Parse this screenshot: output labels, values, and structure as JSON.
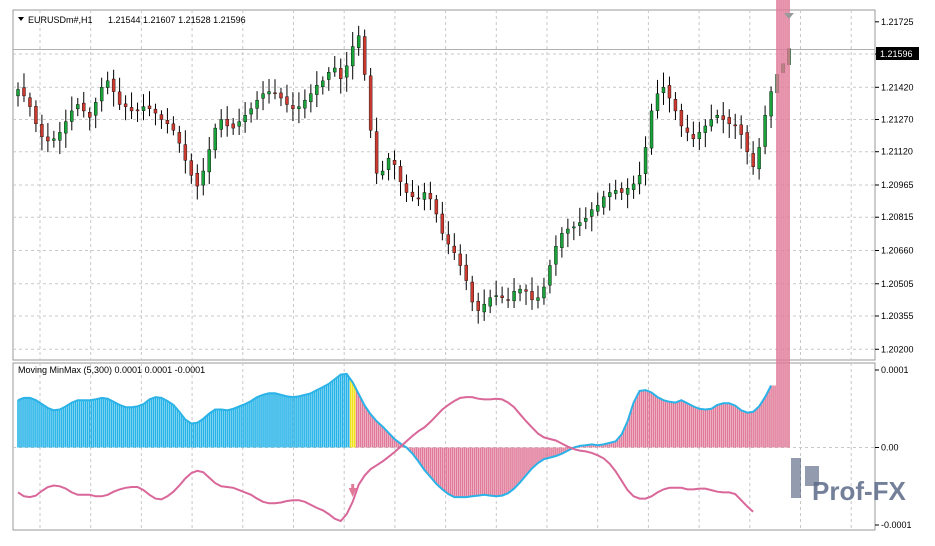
{
  "main_chart": {
    "symbol_label": "EURUSDm#,H1",
    "ohlc_readout": "1.21544 1.21607 1.21528 1.21596",
    "current_price_label": "1.21596",
    "price_ticks": [
      "1.21725",
      "1.21575",
      "1.21420",
      "1.21270",
      "1.21120",
      "1.20965",
      "1.20815",
      "1.20660",
      "1.20505",
      "1.20355",
      "1.20200"
    ]
  },
  "indicator": {
    "title": "Moving MinMax (5,300) 0.0001 0.0001 -0.0001",
    "ticks": [
      "0.0001",
      "0.00",
      "-0.0001"
    ],
    "signal_marker": "arrow-down"
  },
  "watermark": {
    "text": "Prof-FX"
  },
  "colors": {
    "bull_candle": "#1aa33a",
    "bear_candle": "#cc3a30",
    "histogram_positive": "#25b3e8",
    "histogram_negative": "#e07a98",
    "histogram_signal": "#f2e21b",
    "line_blue": "#2bb3e8",
    "line_pink": "#d9679a",
    "grid": "#c8c8c8"
  },
  "chart_data": [
    {
      "type": "candlestick",
      "title": "EURUSDm#,H1",
      "ylim": [
        1.2015,
        1.2178
      ],
      "current_price": 1.21596,
      "close": [
        1.2141,
        1.2138,
        1.2133,
        1.2125,
        1.2119,
        1.2117,
        1.2118,
        1.2121,
        1.2126,
        1.2131,
        1.2134,
        1.2131,
        1.2128,
        1.2135,
        1.2142,
        1.2145,
        1.214,
        1.2134,
        1.2133,
        1.2131,
        1.2131,
        1.2133,
        1.2132,
        1.213,
        1.2127,
        1.2125,
        1.2122,
        1.2116,
        1.2108,
        1.2101,
        1.2096,
        1.2103,
        1.2113,
        1.2123,
        1.2127,
        1.2124,
        1.2123,
        1.2126,
        1.2129,
        1.2132,
        1.2136,
        1.2139,
        1.214,
        1.2139,
        1.2137,
        1.2134,
        1.2132,
        1.2133,
        1.2136,
        1.2139,
        1.2143,
        1.2145,
        1.2149,
        1.2151,
        1.2146,
        1.2152,
        1.2161,
        1.2166,
        1.2148,
        1.2122,
        1.2102,
        1.2103,
        1.2109,
        1.2106,
        1.2098,
        1.2093,
        1.2091,
        1.209,
        1.2093,
        1.209,
        1.2083,
        1.2074,
        1.2069,
        1.2065,
        1.2059,
        1.2052,
        1.2042,
        1.2038,
        1.2041,
        1.2044,
        1.2045,
        1.2044,
        1.2043,
        1.2047,
        1.2048,
        1.2047,
        1.2043,
        1.2044,
        1.2049,
        1.2059,
        1.2068,
        1.2074,
        1.2076,
        1.2077,
        1.2079,
        1.2081,
        1.2085,
        1.2087,
        1.2091,
        1.2093,
        1.2094,
        1.2093,
        1.2095,
        1.2097,
        1.2101,
        1.2114,
        1.2131,
        1.2139,
        1.2142,
        1.2137,
        1.2131,
        1.2124,
        1.2121,
        1.2118,
        1.2121,
        1.2124,
        1.2127,
        1.2129,
        1.2127,
        1.2125,
        1.2124,
        1.212,
        1.2112,
        1.2105,
        1.2114,
        1.2129,
        1.214,
        1.2148,
        1.2153,
        1.216
      ]
    },
    {
      "type": "histogram",
      "title": "Moving MinMax (5,300) 0.0001 0.0001 -0.0001",
      "ylim": [
        -0.0001,
        0.0001
      ],
      "series": [
        {
          "values": [
            6.1e-05,
            6.4e-05,
            6.4e-05,
            6.1e-05,
            5.6e-05,
            5.1e-05,
            4.8e-05,
            4.9e-05,
            5.3e-05,
            5.8e-05,
            6.1e-05,
            6.1e-05,
            6.1e-05,
            6.2e-05,
            6.4e-05,
            6.3e-05,
            5.9e-05,
            5.5e-05,
            5.2e-05,
            5.2e-05,
            5.3e-05,
            5.6e-05,
            6.2e-05,
            6.5e-05,
            6.4e-05,
            6e-05,
            5.5e-05,
            4.6e-05,
            3.6e-05,
            3.1e-05,
            3.2e-05,
            3.7e-05,
            4.4e-05,
            4.9e-05,
            4.9e-05,
            4.8e-05,
            5e-05,
            5.3e-05,
            5.6e-05,
            6e-05,
            6.5e-05,
            6.8e-05,
            7e-05,
            7e-05,
            6.8e-05,
            6.6e-05,
            6.5e-05,
            6.6e-05,
            6.8e-05,
            7e-05,
            7.4e-05,
            7.8e-05,
            8.2e-05,
            8.8e-05,
            9.4e-05,
            9.5e-05,
            8.4e-05,
            6.9e-05,
            5.4e-05,
            4.3e-05,
            3.4e-05,
            2.7e-05,
            1.9e-05,
            1.1e-05,
            5e-06,
            0.0,
            -8e-06,
            -1.8e-05,
            -2.9e-05,
            -3.8e-05,
            -4.7e-05,
            -5.4e-05,
            -6e-05,
            -6.4e-05,
            -6.4e-05,
            -6.4e-05,
            -6.3e-05,
            -6.2e-05,
            -6.1e-05,
            -6.2e-05,
            -6.3e-05,
            -6.2e-05,
            -5.9e-05,
            -5.3e-05,
            -4.5e-05,
            -3.6e-05,
            -2.7e-05,
            -2e-05,
            -1.5e-05,
            -1.3e-05,
            -1.1e-05,
            -8e-06,
            -4e-06,
            0.0,
            2e-06,
            3e-06,
            4e-06,
            3e-06,
            4e-06,
            6e-06,
            8e-06,
            1.7e-05,
            3.4e-05,
            5.8e-05,
            7.3e-05,
            7.4e-05,
            7.1e-05,
            6.5e-05,
            6.1e-05,
            5.9e-05,
            5.8e-05,
            6.1e-05,
            5.7e-05,
            5.3e-05,
            5e-05,
            4.9e-05,
            5e-05,
            5.5e-05,
            5.7e-05,
            5.7e-05,
            5.4e-05,
            4.8e-05,
            4.5e-05,
            4.6e-05,
            5.3e-05,
            6.5e-05,
            8e-05
          ]
        },
        {
          "values": [
            -5.8e-05,
            -6.3e-05,
            -6.4e-05,
            -6.2e-05,
            -5.6e-05,
            -5.1e-05,
            -4.9e-05,
            -5e-05,
            -5.3e-05,
            -5.8e-05,
            -6.1e-05,
            -6.1e-05,
            -6.1e-05,
            -6.3e-05,
            -6.3e-05,
            -6.1e-05,
            -5.7e-05,
            -5.4e-05,
            -5.2e-05,
            -5.1e-05,
            -5.1e-05,
            -5.5e-05,
            -6.1e-05,
            -6.6e-05,
            -6.7e-05,
            -6.3e-05,
            -5.7e-05,
            -4.9e-05,
            -4e-05,
            -3.3e-05,
            -3e-05,
            -3.2e-05,
            -3.9e-05,
            -4.6e-05,
            -5e-05,
            -5.1e-05,
            -5.2e-05,
            -5.5e-05,
            -5.8e-05,
            -6.1e-05,
            -6.6e-05,
            -7e-05,
            -7.2e-05,
            -7.2e-05,
            -7.1e-05,
            -6.9e-05,
            -6.8e-05,
            -6.8e-05,
            -7e-05,
            -7.4e-05,
            -7.8e-05,
            -8.1e-05,
            -8.6e-05,
            -9.2e-05,
            -9.5e-05,
            -8.6e-05,
            -7e-05,
            -4.8e-05,
            -3.6e-05,
            -2.8e-05,
            -2.3e-05,
            -1.8e-05,
            -1.2e-05,
            -6e-06,
            1e-06,
            8e-06,
            1.5e-05,
            2.1e-05,
            2.6e-05,
            3.3e-05,
            4.1e-05,
            4.9e-05,
            5.5e-05,
            6e-05,
            6.4e-05,
            6.5e-05,
            6.5e-05,
            6.3e-05,
            6.2e-05,
            6.2e-05,
            6.3e-05,
            6.2e-05,
            5.8e-05,
            5.2e-05,
            4.3e-05,
            3.4e-05,
            2.6e-05,
            1.8e-05,
            1.3e-05,
            1.1e-05,
            9e-06,
            5e-06,
            1e-06,
            -2e-06,
            -4e-06,
            -5e-06,
            -7e-06,
            -1e-05,
            -1.4e-05,
            -2.1e-05,
            -3.1e-05,
            -4.3e-05,
            -5.5e-05,
            -6.3e-05,
            -6.6e-05,
            -6.6e-05,
            -6.3e-05,
            -5.8e-05,
            -5.4e-05,
            -5.2e-05,
            -5.2e-05,
            -5.2e-05,
            -5.4e-05,
            -5.4e-05,
            -5.3e-05,
            -5.3e-05,
            -5.5e-05,
            -5.7e-05,
            -5.8e-05,
            -5.8e-05,
            -6e-05,
            -6.8e-05,
            -7.6e-05,
            -8.3e-05
          ]
        }
      ],
      "signal_index": 56
    }
  ]
}
